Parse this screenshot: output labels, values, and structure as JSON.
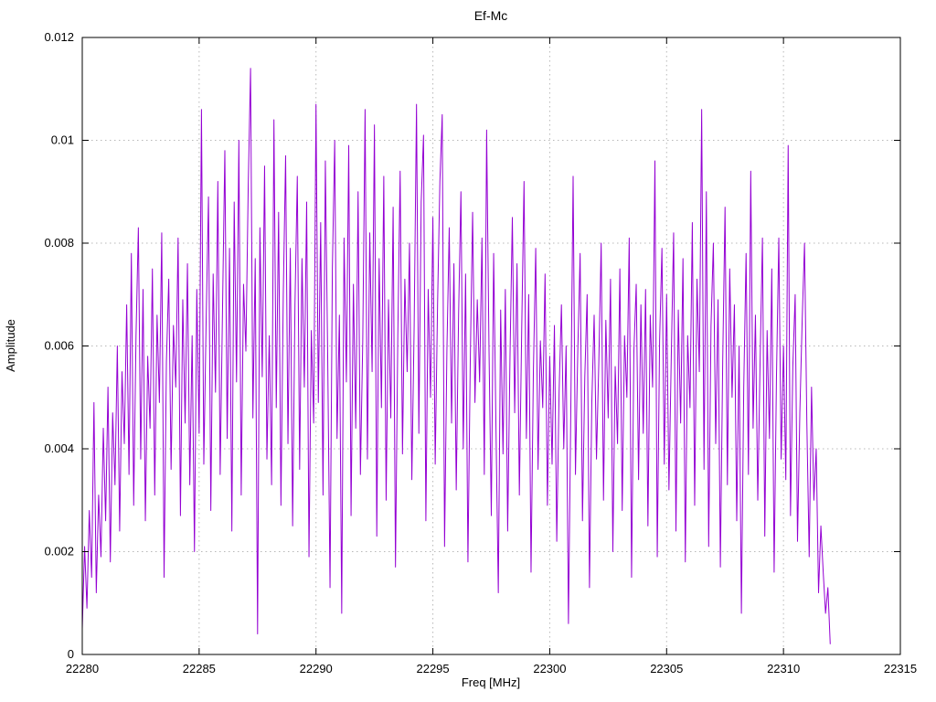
{
  "page": {
    "background": "#ffffff",
    "text_color": "#000000",
    "grid_color": "#b8b8b8",
    "border_color": "#000000"
  },
  "chart_data": {
    "type": "line",
    "title": "Ef-Mc",
    "xlabel": "Freq [MHz]",
    "ylabel": "Amplitude",
    "xlim": [
      22280,
      22315
    ],
    "ylim": [
      0,
      0.012
    ],
    "x_ticks": [
      22280,
      22285,
      22290,
      22295,
      22300,
      22305,
      22310,
      22315
    ],
    "x_tick_labels": [
      "22280",
      "22285",
      "22290",
      "22295",
      "22300",
      "22305",
      "22310",
      "22315"
    ],
    "y_ticks": [
      0,
      0.002,
      0.004,
      0.006,
      0.008,
      0.01,
      0.012
    ],
    "y_tick_labels": [
      "0",
      "0.002",
      "0.004",
      "0.006",
      "0.008",
      "0.01",
      "0.012"
    ],
    "grid": true,
    "grid_style": "dotted",
    "legend": "none",
    "line_color": "#9400d3",
    "series": [
      {
        "name": "Ef-Mc",
        "x_start": 22280.0,
        "x_step": 0.1,
        "values": [
          0.0005,
          0.0021,
          0.0009,
          0.0028,
          0.0015,
          0.0049,
          0.0012,
          0.0031,
          0.0019,
          0.0044,
          0.0026,
          0.0052,
          0.0018,
          0.0047,
          0.0033,
          0.006,
          0.0024,
          0.0055,
          0.0041,
          0.0068,
          0.0035,
          0.0078,
          0.0029,
          0.0062,
          0.0083,
          0.0038,
          0.0071,
          0.0026,
          0.0058,
          0.0044,
          0.0075,
          0.0031,
          0.0066,
          0.0049,
          0.0082,
          0.0015,
          0.0057,
          0.0073,
          0.0036,
          0.0064,
          0.0052,
          0.0081,
          0.0027,
          0.0069,
          0.0045,
          0.0076,
          0.0033,
          0.0062,
          0.002,
          0.0071,
          0.0043,
          0.0106,
          0.0037,
          0.0065,
          0.0089,
          0.0028,
          0.0074,
          0.0051,
          0.0092,
          0.0035,
          0.0067,
          0.0098,
          0.0042,
          0.0079,
          0.0024,
          0.0088,
          0.0053,
          0.01,
          0.0031,
          0.0072,
          0.0059,
          0.0091,
          0.0114,
          0.0046,
          0.0077,
          0.0004,
          0.0083,
          0.0054,
          0.0095,
          0.0038,
          0.0062,
          0.0033,
          0.0104,
          0.0048,
          0.0086,
          0.0029,
          0.007,
          0.0097,
          0.0041,
          0.0079,
          0.0025,
          0.0068,
          0.0093,
          0.0036,
          0.0077,
          0.0052,
          0.0088,
          0.0019,
          0.0063,
          0.0045,
          0.0107,
          0.0049,
          0.0084,
          0.0031,
          0.0096,
          0.0058,
          0.0013,
          0.0075,
          0.01,
          0.0042,
          0.0066,
          0.0008,
          0.0081,
          0.0053,
          0.0099,
          0.0027,
          0.0072,
          0.0044,
          0.009,
          0.0035,
          0.0061,
          0.0106,
          0.0038,
          0.0082,
          0.0055,
          0.0103,
          0.0023,
          0.0077,
          0.0048,
          0.0093,
          0.003,
          0.0069,
          0.0046,
          0.0087,
          0.0017,
          0.0062,
          0.0094,
          0.0039,
          0.0073,
          0.0055,
          0.008,
          0.0034,
          0.0064,
          0.0107,
          0.0043,
          0.0088,
          0.0101,
          0.0026,
          0.0071,
          0.005,
          0.0085,
          0.0037,
          0.0068,
          0.0092,
          0.0105,
          0.0021,
          0.0059,
          0.0083,
          0.0045,
          0.0076,
          0.0032,
          0.0066,
          0.009,
          0.004,
          0.0074,
          0.0018,
          0.0057,
          0.0086,
          0.0049,
          0.0069,
          0.0053,
          0.0081,
          0.0035,
          0.0102,
          0.006,
          0.0027,
          0.0078,
          0.0044,
          0.0012,
          0.0067,
          0.0039,
          0.0071,
          0.0024,
          0.0058,
          0.0085,
          0.0047,
          0.0076,
          0.0031,
          0.0063,
          0.0092,
          0.0042,
          0.007,
          0.0016,
          0.0055,
          0.0079,
          0.0036,
          0.0061,
          0.0048,
          0.0074,
          0.0029,
          0.0058,
          0.0037,
          0.0064,
          0.0022,
          0.0051,
          0.0068,
          0.004,
          0.006,
          0.0006,
          0.0047,
          0.0093,
          0.0035,
          0.0059,
          0.0078,
          0.0026,
          0.0054,
          0.007,
          0.0013,
          0.0049,
          0.0066,
          0.0038,
          0.0057,
          0.008,
          0.003,
          0.0065,
          0.0046,
          0.0073,
          0.002,
          0.0056,
          0.0041,
          0.0075,
          0.0028,
          0.0062,
          0.005,
          0.0081,
          0.0015,
          0.0059,
          0.0072,
          0.0034,
          0.0068,
          0.0043,
          0.0071,
          0.0025,
          0.0066,
          0.0052,
          0.0096,
          0.0019,
          0.0061,
          0.0079,
          0.0037,
          0.007,
          0.0032,
          0.0058,
          0.0082,
          0.0024,
          0.0067,
          0.0045,
          0.0077,
          0.0018,
          0.0062,
          0.0048,
          0.0084,
          0.0029,
          0.0073,
          0.0055,
          0.0106,
          0.0036,
          0.009,
          0.0021,
          0.0064,
          0.008,
          0.0041,
          0.0069,
          0.0017,
          0.0057,
          0.0087,
          0.0033,
          0.0075,
          0.005,
          0.0068,
          0.0026,
          0.006,
          0.0008,
          0.0052,
          0.0078,
          0.0035,
          0.0094,
          0.0044,
          0.0066,
          0.003,
          0.0057,
          0.0081,
          0.0023,
          0.0063,
          0.0042,
          0.0075,
          0.0016,
          0.0054,
          0.0081,
          0.0038,
          0.006,
          0.0034,
          0.0099,
          0.0027,
          0.0056,
          0.007,
          0.0022,
          0.0047,
          0.0065,
          0.008,
          0.0045,
          0.0019,
          0.0052,
          0.003,
          0.004,
          0.0012,
          0.0025,
          0.0016,
          0.0008,
          0.0013,
          0.0002
        ]
      }
    ]
  }
}
